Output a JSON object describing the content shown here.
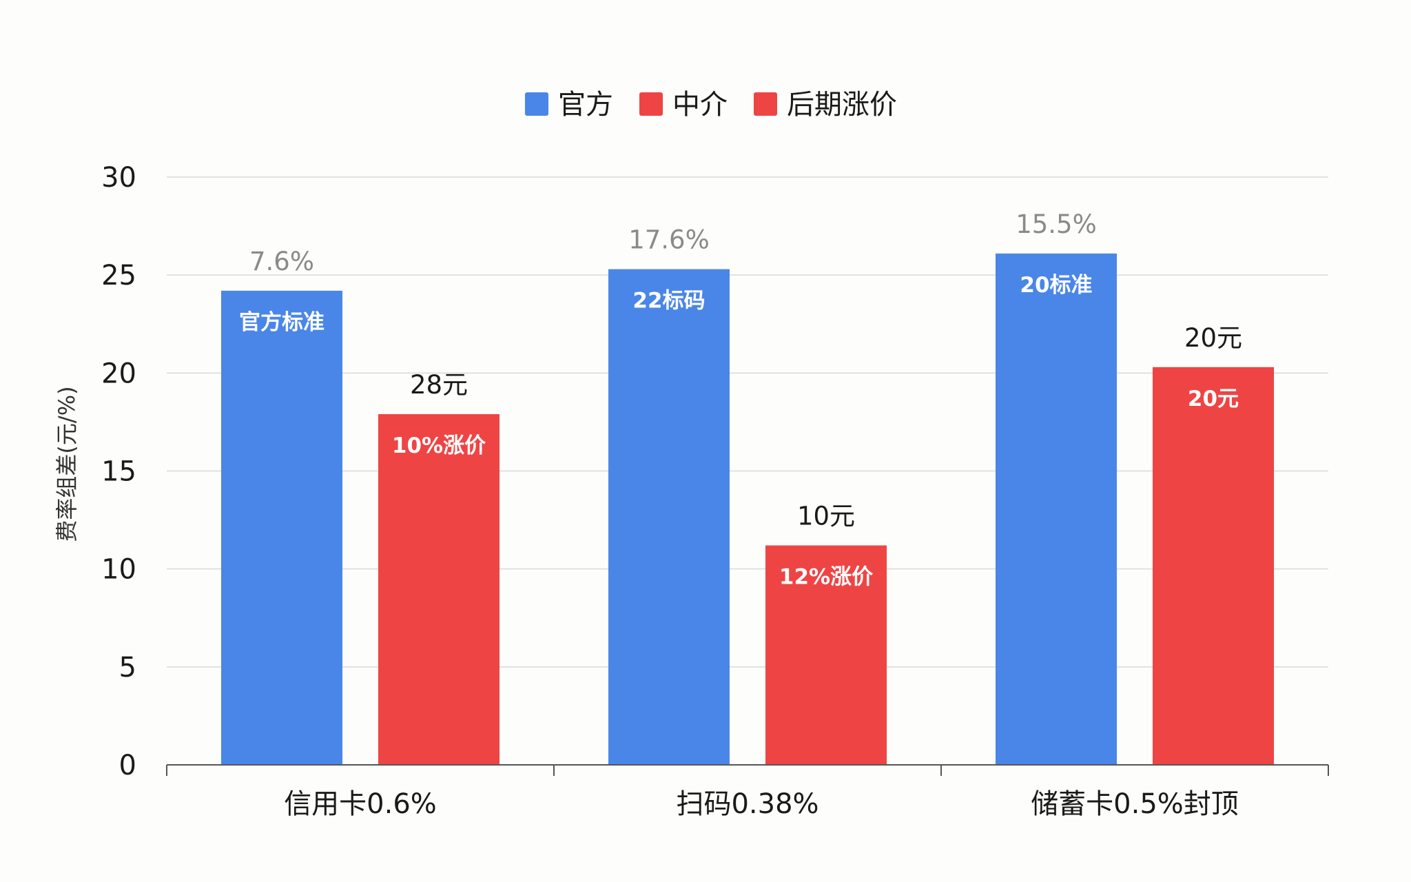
{
  "chart_data": {
    "type": "bar",
    "title": "",
    "xlabel": "",
    "ylabel": "费率组差(元/%)",
    "ylim": [
      0,
      30
    ],
    "yticks": [
      0,
      5,
      10,
      15,
      20,
      25,
      30
    ],
    "grid": true,
    "legend_position": "top-center",
    "categories": [
      "信用卡0.6%",
      "扫码0.38%",
      "储蓄卡0.5%封顶"
    ],
    "legend": [
      {
        "label": "官方",
        "color": "#4a86e8"
      },
      {
        "label": "中介",
        "color": "#ef4444"
      },
      {
        "label": "后期涨价",
        "color": "#ef4444"
      }
    ],
    "series": [
      {
        "name": "官方",
        "color": "#4a86e8",
        "values": [
          24.2,
          25.3,
          26.1
        ],
        "labels_above": [
          "7.6%",
          "17.6%",
          "15.5%"
        ],
        "labels_inside": [
          "官方标准",
          "22标码",
          "20标准"
        ]
      },
      {
        "name": "中介",
        "color": "#ef4444",
        "values": [
          17.9,
          11.2,
          20.3
        ],
        "labels_above": [
          "28元",
          "10元",
          "20元"
        ],
        "labels_inside": [
          "10%涨价",
          "12%涨价",
          "20元"
        ]
      }
    ]
  }
}
